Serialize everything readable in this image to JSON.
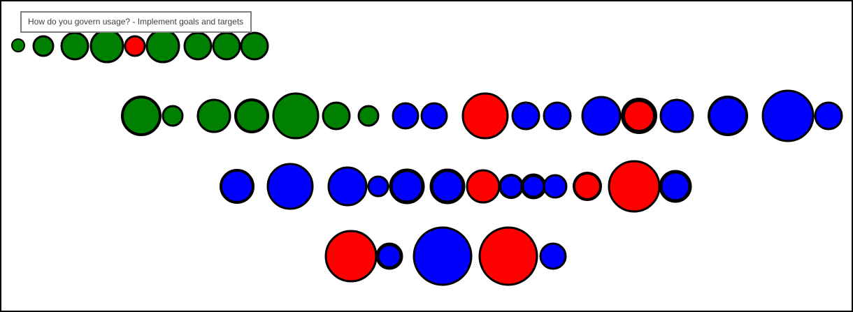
{
  "tooltip": {
    "text": "How do you govern usage? - Implement goals and targets"
  },
  "colors": {
    "green": "#008000",
    "blue": "#0000ff",
    "red": "#ff0000",
    "outline": "#000000"
  },
  "rows": [
    {
      "name": "row-1",
      "bubbles": [
        "green",
        "green",
        "green",
        "green",
        "red",
        "green",
        "green",
        "green",
        "green"
      ]
    },
    {
      "name": "row-2",
      "bubbles": [
        "green",
        "green",
        "green",
        "green",
        "green",
        "green",
        "green",
        "blue",
        "blue",
        "red",
        "blue",
        "blue",
        "blue",
        "red",
        "blue",
        "blue",
        "blue",
        "blue"
      ]
    },
    {
      "name": "row-3",
      "bubbles": [
        "blue",
        "blue",
        "blue",
        "blue",
        "blue",
        "blue",
        "red",
        "blue",
        "blue",
        "blue",
        "red",
        "red",
        "blue"
      ]
    },
    {
      "name": "row-4",
      "bubbles": [
        "red",
        "blue",
        "blue",
        "red",
        "blue"
      ]
    }
  ]
}
